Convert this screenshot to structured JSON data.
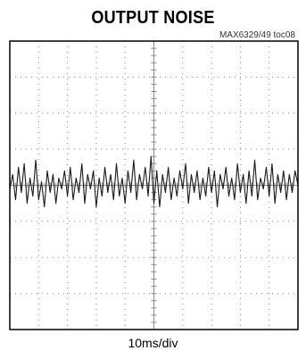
{
  "title": "OUTPUT NOISE",
  "ref_code": "MAX6329/49 toc08",
  "colors": {
    "trace": "#1a1a1a",
    "grid": "#8a8a8a",
    "frame": "#000000",
    "background": "#ffffff"
  },
  "chart_data": {
    "type": "line",
    "title": "OUTPUT NOISE",
    "xlabel": "10ms/div",
    "ylabel": "",
    "x_divisions": 10,
    "y_divisions": 8,
    "xlim": [
      0,
      10
    ],
    "ylim": [
      -4,
      4
    ],
    "grid": "dotted",
    "series": [
      {
        "x": [
          0,
          0.1,
          0.2,
          0.3,
          0.4,
          0.5,
          0.6,
          0.7,
          0.8,
          0.9,
          1.0,
          1.1,
          1.2,
          1.3,
          1.4,
          1.5,
          1.6,
          1.7,
          1.8,
          1.9,
          2.0,
          2.1,
          2.2,
          2.3,
          2.4,
          2.5,
          2.6,
          2.7,
          2.8,
          2.9,
          3.0,
          3.1,
          3.2,
          3.3,
          3.4,
          3.5,
          3.6,
          3.7,
          3.8,
          3.9,
          4.0,
          4.1,
          4.2,
          4.3,
          4.4,
          4.5,
          4.6,
          4.7,
          4.8,
          4.9,
          5.0,
          5.1,
          5.2,
          5.3,
          5.4,
          5.5,
          5.6,
          5.7,
          5.8,
          5.9,
          6.0,
          6.1,
          6.2,
          6.3,
          6.4,
          6.5,
          6.6,
          6.7,
          6.8,
          6.9,
          7.0,
          7.1,
          7.2,
          7.3,
          7.4,
          7.5,
          7.6,
          7.7,
          7.8,
          7.9,
          8.0,
          8.1,
          8.2,
          8.3,
          8.4,
          8.5,
          8.6,
          8.7,
          8.8,
          8.9,
          9.0,
          9.1,
          9.2,
          9.3,
          9.4,
          9.5,
          9.6,
          9.7,
          9.8,
          9.9,
          10.0
        ],
        "values": [
          -0.1,
          0.3,
          -0.4,
          0.5,
          -0.2,
          0.6,
          -0.5,
          0.2,
          -0.3,
          0.7,
          -0.4,
          0.1,
          -0.6,
          0.4,
          -0.2,
          0.3,
          -0.5,
          0.2,
          -0.1,
          0.4,
          -0.3,
          0.5,
          -0.4,
          0.2,
          -0.2,
          0.6,
          -0.5,
          0.3,
          -0.1,
          0.4,
          -0.6,
          0.2,
          -0.3,
          0.5,
          -0.2,
          0.3,
          -0.4,
          0.6,
          -0.3,
          0.2,
          -0.5,
          0.4,
          -0.2,
          0.7,
          -0.4,
          0.3,
          -0.1,
          0.5,
          -0.3,
          0.8,
          -0.5,
          0.4,
          -0.6,
          0.3,
          -0.2,
          0.5,
          -0.4,
          0.2,
          -0.3,
          0.4,
          -0.1,
          0.6,
          -0.5,
          0.3,
          -0.2,
          0.4,
          -0.4,
          0.2,
          -0.3,
          0.5,
          -0.2,
          0.4,
          -0.6,
          0.3,
          -0.1,
          0.5,
          -0.3,
          0.2,
          -0.4,
          0.6,
          -0.2,
          0.3,
          -0.5,
          0.4,
          -0.3,
          0.7,
          -0.4,
          0.2,
          -0.1,
          0.5,
          -0.3,
          0.6,
          -0.5,
          0.3,
          -0.2,
          0.4,
          -0.4,
          0.3,
          -0.2,
          0.4,
          0.0
        ]
      }
    ]
  }
}
